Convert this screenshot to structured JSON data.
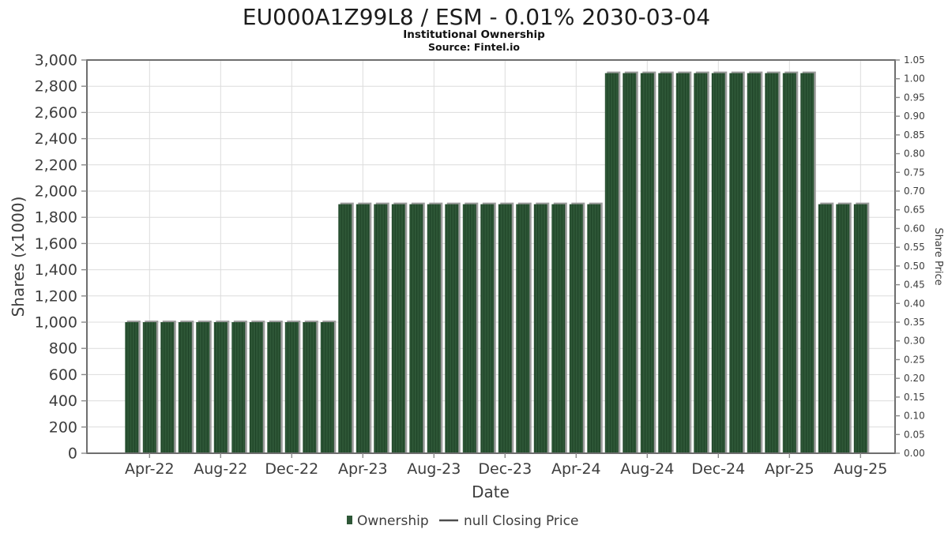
{
  "header": {
    "title": "EU000A1Z99L8 / ESM - 0.01% 2030-03-04",
    "subtitle": "Institutional Ownership",
    "source": "Source: Fintel.io"
  },
  "axes": {
    "y_left_label": "Shares (x1000)",
    "y_right_label": "Share Price",
    "x_label": "Date"
  },
  "legend": {
    "ownership_label": "Ownership",
    "price_label": "null Closing Price",
    "ownership_color": "#2e5737",
    "price_line_color": "#4d4d4d"
  },
  "colors": {
    "bar_fill": "#2e5737",
    "bar_stripe": "#1f4427",
    "bar_shadow": "#9c9c9c",
    "gridline": "#dcdcdc",
    "frame": "#6e6e6e",
    "tick_mark": "#8a8a8a"
  },
  "chart_data": {
    "type": "bar",
    "title": "EU000A1Z99L8 / ESM - 0.01% 2030-03-04",
    "subtitle": "Institutional Ownership",
    "source": "Source: Fintel.io",
    "xlabel": "Date",
    "ylabel_left": "Shares (x1000)",
    "ylabel_right": "Share Price",
    "units": "thousands of shares",
    "grid": true,
    "legend_position": "bottom-center",
    "categories": [
      "Mar-22",
      "Apr-22",
      "May-22",
      "Jun-22",
      "Jul-22",
      "Aug-22",
      "Sep-22",
      "Oct-22",
      "Nov-22",
      "Dec-22",
      "Jan-23",
      "Feb-23",
      "Mar-23",
      "Apr-23",
      "May-23",
      "Jun-23",
      "Jul-23",
      "Aug-23",
      "Sep-23",
      "Oct-23",
      "Nov-23",
      "Dec-23",
      "Jan-24",
      "Feb-24",
      "Mar-24",
      "Apr-24",
      "May-24",
      "Jun-24",
      "Jul-24",
      "Aug-24",
      "Sep-24",
      "Oct-24",
      "Nov-24",
      "Dec-24",
      "Jan-25",
      "Feb-25",
      "Mar-25",
      "Apr-25",
      "May-25",
      "Jun-25",
      "Jul-25",
      "Aug-25"
    ],
    "series": [
      {
        "name": "Ownership",
        "values": [
          1000,
          1000,
          1000,
          1000,
          1000,
          1000,
          1000,
          1000,
          1000,
          1000,
          1000,
          1000,
          1900,
          1900,
          1900,
          1900,
          1900,
          1900,
          1900,
          1900,
          1900,
          1900,
          1900,
          1900,
          1900,
          1900,
          1900,
          2900,
          2900,
          2900,
          2900,
          2900,
          2900,
          2900,
          2900,
          2900,
          2900,
          2900,
          2900,
          1900,
          1900,
          1900
        ]
      },
      {
        "name": "null Closing Price",
        "values": []
      }
    ],
    "x_ticks": [
      "Apr-22",
      "Aug-22",
      "Dec-22",
      "Apr-23",
      "Aug-23",
      "Dec-23",
      "Apr-24",
      "Aug-24",
      "Dec-24",
      "Apr-25",
      "Aug-25"
    ],
    "y_left": {
      "min": 0,
      "max": 3000,
      "step": 200,
      "tick_labels": [
        "0",
        "200",
        "400",
        "600",
        "800",
        "1,000",
        "1,200",
        "1,400",
        "1,600",
        "1,800",
        "2,000",
        "2,200",
        "2,400",
        "2,600",
        "2,800",
        "3,000"
      ]
    },
    "y_right": {
      "min": 0.0,
      "max": 1.05,
      "step": 0.05,
      "tick_labels": [
        "0.00",
        "0.05",
        "0.10",
        "0.15",
        "0.20",
        "0.25",
        "0.30",
        "0.35",
        "0.40",
        "0.45",
        "0.50",
        "0.55",
        "0.60",
        "0.65",
        "0.70",
        "0.75",
        "0.80",
        "0.85",
        "0.90",
        "0.95",
        "1.00",
        "1.05"
      ]
    }
  }
}
